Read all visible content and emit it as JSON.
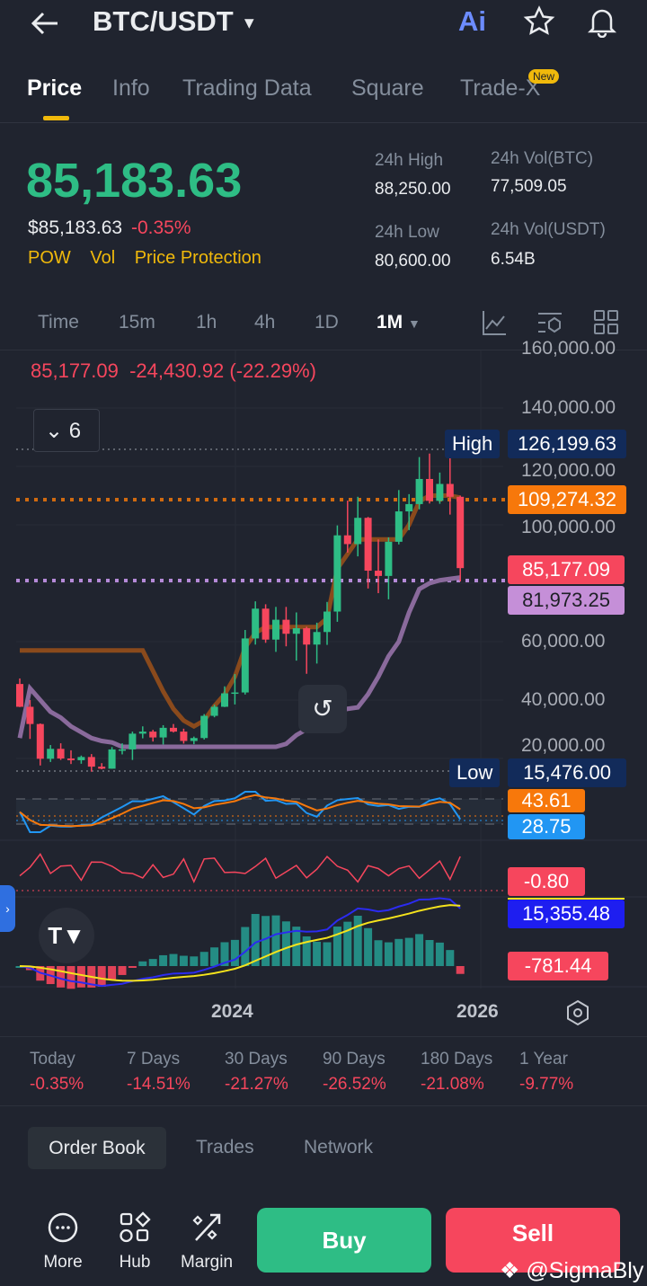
{
  "header": {
    "title": "BTC/USDT",
    "ai_label": "Ai"
  },
  "tabs": [
    {
      "label": "Price"
    },
    {
      "label": "Info"
    },
    {
      "label": "Trading Data"
    },
    {
      "label": "Square"
    },
    {
      "label": "Trade-X",
      "badge": "New"
    }
  ],
  "ticker": {
    "last": "85,183.63",
    "usd": "$85,183.63",
    "change": "-0.35%",
    "tags": [
      "POW",
      "Vol",
      "Price Protection"
    ],
    "high_label": "24h High",
    "high": "88,250.00",
    "low_label": "24h Low",
    "low": "80,600.00",
    "vol_btc_label": "24h Vol(BTC)",
    "vol_btc": "77,509.05",
    "vol_usdt_label": "24h Vol(USDT)",
    "vol_usdt": "6.54B"
  },
  "timeframes": [
    "Time",
    "15m",
    "1h",
    "4h",
    "1D",
    "1M"
  ],
  "chart": {
    "legend": "85,177.09  -24,430.92 (-22.29%)",
    "indicator_count": "6",
    "y_ticks": [
      "160,000.00",
      "140,000.00",
      "120,000.00",
      "100,000.00",
      "60,000.00",
      "40,000.00",
      "20,000.00"
    ],
    "high_label": "High",
    "high_value": "126,199.63",
    "low_label": "Low",
    "low_value": "15,476.00",
    "ma_orange": "109,274.32",
    "last_price": "85,177.09",
    "ma_purple": "81,973.25",
    "osc_orange": "43.61",
    "osc_blue": "28.75",
    "red_ind": "-0.80",
    "macd_line": "15,355.48",
    "macd_hist": "-781.44",
    "x_ticks": [
      "2024",
      "2026"
    ],
    "colors": {
      "up": "#2ebd85",
      "down": "#f6465d",
      "orange": "#8a4a1c",
      "purple": "#8a6a9c"
    }
  },
  "chart_data": {
    "type": "candlestick",
    "start": "2022-04",
    "interval": "1M",
    "candles": [
      [
        45500,
        47400,
        37600,
        37700
      ],
      [
        37700,
        40000,
        26700,
        31800
      ],
      [
        31800,
        32000,
        17600,
        19900
      ],
      [
        19900,
        24600,
        18800,
        23300
      ],
      [
        23300,
        25200,
        19500,
        20000
      ],
      [
        20000,
        22800,
        18100,
        19400
      ],
      [
        19400,
        21000,
        18200,
        20500
      ],
      [
        20500,
        21500,
        15476,
        17200
      ],
      [
        17200,
        18400,
        16300,
        16500
      ],
      [
        16500,
        23900,
        16500,
        23100
      ],
      [
        23100,
        25200,
        21400,
        23100
      ],
      [
        23100,
        29200,
        19500,
        28500
      ],
      [
        28500,
        31000,
        26900,
        29200
      ],
      [
        29200,
        29800,
        25800,
        27200
      ],
      [
        27200,
        31400,
        24800,
        30500
      ],
      [
        30500,
        31800,
        28900,
        29200
      ],
      [
        29200,
        30200,
        25100,
        26000
      ],
      [
        26000,
        27500,
        24900,
        27000
      ],
      [
        27000,
        35200,
        26500,
        34600
      ],
      [
        34600,
        38400,
        34100,
        37700
      ],
      [
        37700,
        44700,
        37600,
        42300
      ],
      [
        42300,
        48900,
        38500,
        42600
      ],
      [
        42600,
        64000,
        41900,
        61100
      ],
      [
        61100,
        73800,
        59000,
        71300
      ],
      [
        71300,
        72800,
        59600,
        60700
      ],
      [
        60700,
        71900,
        56500,
        67500
      ],
      [
        67500,
        71900,
        58400,
        62700
      ],
      [
        62700,
        70000,
        53500,
        64600
      ],
      [
        64600,
        65100,
        49000,
        59000
      ],
      [
        59000,
        66500,
        52500,
        63300
      ],
      [
        63300,
        73600,
        58900,
        70300
      ],
      [
        70300,
        99800,
        66800,
        96400
      ],
      [
        96400,
        108300,
        90500,
        93400
      ],
      [
        93400,
        109600,
        89200,
        102400
      ],
      [
        102400,
        102700,
        78200,
        84300
      ],
      [
        84300,
        95000,
        76600,
        82500
      ],
      [
        82500,
        95700,
        74500,
        94200
      ],
      [
        94200,
        111900,
        93300,
        104600
      ],
      [
        104600,
        110500,
        98200,
        107100
      ],
      [
        107100,
        123200,
        105300,
        115700
      ],
      [
        115700,
        124400,
        107300,
        108200
      ],
      [
        108200,
        117900,
        107200,
        114000
      ],
      [
        114000,
        126199,
        103500,
        109600
      ],
      [
        109600,
        110000,
        80600,
        85177
      ]
    ],
    "orange_line": [
      57000,
      57000,
      57000,
      57000,
      57000,
      57000,
      57000,
      57000,
      57000,
      57000,
      57000,
      57000,
      57000,
      50000,
      43000,
      37000,
      33000,
      31000,
      33000,
      38000,
      42000,
      48000,
      58000,
      63000,
      65000,
      65000,
      65000,
      65000,
      65000,
      65000,
      68000,
      85000,
      90000,
      95000,
      95000,
      95000,
      95000,
      95000,
      100000,
      108000,
      110000,
      110000,
      110000,
      109274
    ],
    "purple_line": [
      27000,
      44000,
      40000,
      36000,
      34000,
      31000,
      29000,
      27000,
      26000,
      25500,
      24000,
      24000,
      24000,
      24000,
      24000,
      24000,
      24000,
      24000,
      24000,
      24000,
      24000,
      24000,
      24000,
      24000,
      24000,
      24000,
      25000,
      28000,
      30000,
      32000,
      34000,
      36000,
      37000,
      37500,
      42000,
      48000,
      55000,
      60000,
      70000,
      78000,
      80000,
      81000,
      81500,
      81973
    ]
  },
  "periods": [
    {
      "label": "Today",
      "value": "-0.35%"
    },
    {
      "label": "7 Days",
      "value": "-14.51%"
    },
    {
      "label": "30 Days",
      "value": "-21.27%"
    },
    {
      "label": "90 Days",
      "value": "-26.52%"
    },
    {
      "label": "180 Days",
      "value": "-21.08%"
    },
    {
      "label": "1 Year",
      "value": "-9.77%"
    }
  ],
  "book_tabs": [
    "Order Book",
    "Trades",
    "Network"
  ],
  "bottom": {
    "more": "More",
    "hub": "Hub",
    "margin": "Margin",
    "buy": "Buy",
    "sell": "Sell",
    "watermark": "@SigmaBly"
  }
}
